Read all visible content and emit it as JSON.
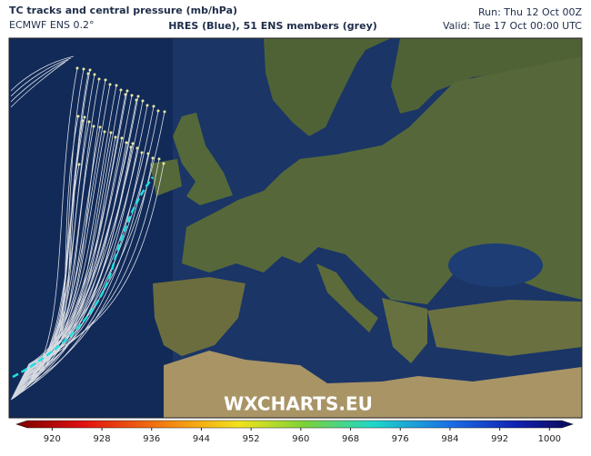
{
  "header": {
    "title": "TC tracks and central pressure (mb/hPa)",
    "subtitle": "ECMWF ENS 0.2°",
    "legend": "HRES (Blue), 51 ENS members (grey)",
    "run": "Run: Thu 12 Oct 00Z",
    "valid": "Valid: Tue 17 Oct 00:00 UTC"
  },
  "watermark": "WXCHARTS.EU",
  "colorbar": {
    "lim": [
      916,
      1002
    ],
    "ticks": [
      920,
      928,
      936,
      944,
      952,
      960,
      968,
      976,
      984,
      992,
      1000
    ]
  }
}
